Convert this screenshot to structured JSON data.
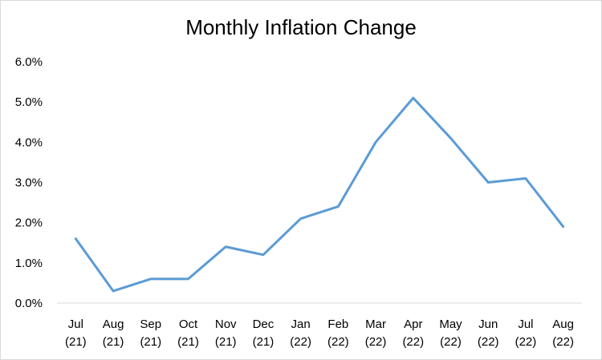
{
  "chart_data": {
    "type": "line",
    "title": "Monthly Inflation Change",
    "xlabel": "",
    "ylabel": "",
    "categories": [
      [
        "Jul",
        "(21)"
      ],
      [
        "Aug",
        "(21)"
      ],
      [
        "Sep",
        "(21)"
      ],
      [
        "Oct",
        "(21)"
      ],
      [
        "Nov",
        "(21)"
      ],
      [
        "Dec",
        "(21)"
      ],
      [
        "Jan",
        "(22)"
      ],
      [
        "Feb",
        "(22)"
      ],
      [
        "Mar",
        "(22)"
      ],
      [
        "Apr",
        "(22)"
      ],
      [
        "May",
        "(22)"
      ],
      [
        "Jun",
        "(22)"
      ],
      [
        "Jul",
        "(22)"
      ],
      [
        "Aug",
        "(22)"
      ]
    ],
    "series": [
      {
        "values": [
          1.6,
          0.3,
          0.6,
          0.6,
          1.4,
          1.2,
          2.1,
          2.4,
          4.0,
          5.1,
          4.1,
          3.0,
          3.1,
          1.9
        ],
        "color": "#5b9bd5"
      }
    ],
    "ylim": [
      0,
      6
    ],
    "yticks": [
      "0.0%",
      "1.0%",
      "2.0%",
      "3.0%",
      "4.0%",
      "5.0%",
      "6.0%"
    ],
    "grid": false,
    "legend": "none"
  }
}
